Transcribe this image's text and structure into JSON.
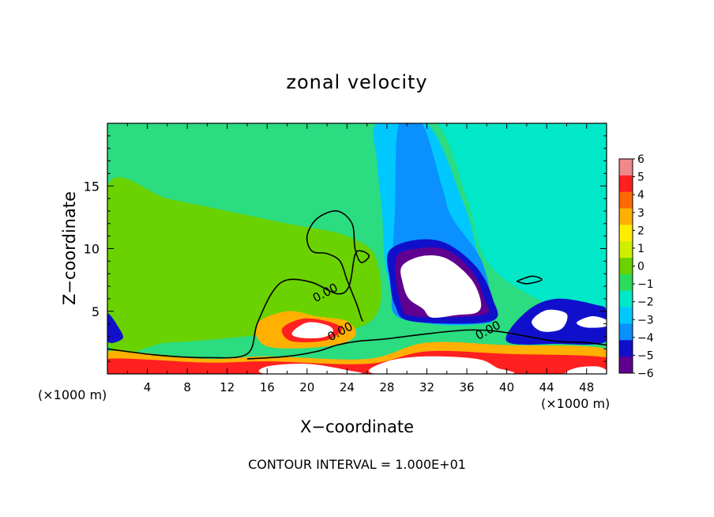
{
  "chart_data": {
    "type": "heatmap",
    "title": "zonal velocity",
    "xlabel": "X−coordinate",
    "ylabel": "Z−coordinate",
    "x_unit_left": "(×1000 m)",
    "x_unit_right": "(×1000 m)",
    "footer": "CONTOUR INTERVAL = 1.000E+01",
    "xlim": [
      0,
      50
    ],
    "ylim": [
      0,
      20
    ],
    "xticks": [
      4,
      8,
      12,
      16,
      20,
      24,
      28,
      32,
      36,
      40,
      44,
      48
    ],
    "xtick_labels": [
      "4",
      "8",
      "12",
      "16",
      "20",
      "24",
      "28",
      "32",
      "36",
      "40",
      "44",
      "48"
    ],
    "yticks": [
      5,
      10,
      15
    ],
    "ytick_labels": [
      "5",
      "10",
      "15"
    ],
    "contour_labels": [
      {
        "text": "0.00",
        "x": 22.0,
        "y": 6.2
      },
      {
        "text": "0.00",
        "x": 23.5,
        "y": 3.1
      },
      {
        "text": "0.00",
        "x": 38.3,
        "y": 3.2
      }
    ],
    "colorbar": {
      "values": [
        6,
        5,
        4,
        3,
        2,
        1,
        0,
        -1,
        -2,
        -3,
        -4,
        -5,
        -6
      ],
      "labels": [
        "6",
        "5",
        "4",
        "3",
        "2",
        "1",
        "0",
        "−1",
        "−2",
        "−3",
        "−4",
        "−5",
        "−6"
      ],
      "colors": [
        "#f08a8a",
        "#ff2020",
        "#ff6a00",
        "#ffb000",
        "#ffee00",
        "#cfee00",
        "#6ad200",
        "#2bdc5a",
        "#00e8c8",
        "#00c8ff",
        "#0a90ff",
        "#1010cc",
        "#600090"
      ]
    },
    "regions": [
      {
        "name": "background",
        "color": "#2bdc80",
        "polygon": [
          [
            0,
            20
          ],
          [
            50,
            20
          ],
          [
            50,
            0
          ],
          [
            0,
            0
          ]
        ]
      },
      {
        "name": "upper-right-teal",
        "color": "#00e8c8",
        "polygon": [
          [
            28,
            20
          ],
          [
            50,
            20
          ],
          [
            50,
            4
          ],
          [
            43,
            6
          ],
          [
            38,
            9
          ],
          [
            36,
            14
          ],
          [
            33,
            20
          ]
        ]
      },
      {
        "name": "upper-left-green",
        "color": "#6ad200",
        "polygon": [
          [
            0,
            15
          ],
          [
            6,
            14
          ],
          [
            12,
            13
          ],
          [
            18,
            12
          ],
          [
            24,
            11
          ],
          [
            27,
            9
          ],
          [
            26,
            4
          ],
          [
            14,
            3
          ],
          [
            6,
            2.5
          ],
          [
            0,
            2.5
          ]
        ]
      },
      {
        "name": "jet-light-blue",
        "color": "#00c8ff",
        "polygon": [
          [
            27,
            20
          ],
          [
            32,
            20
          ],
          [
            35.5,
            14
          ],
          [
            37,
            10
          ],
          [
            38,
            6
          ],
          [
            37,
            4
          ],
          [
            30,
            4.5
          ],
          [
            28,
            8
          ],
          [
            27.5,
            13
          ],
          [
            27,
            17
          ]
        ]
      },
      {
        "name": "jet-blue",
        "color": "#0a90ff",
        "polygon": [
          [
            29.2,
            20
          ],
          [
            31.5,
            20
          ],
          [
            33.5,
            15
          ],
          [
            34.5,
            12.5
          ],
          [
            37.5,
            9
          ],
          [
            38.5,
            5
          ],
          [
            37.5,
            4
          ],
          [
            29.5,
            4.4
          ],
          [
            28.5,
            7
          ],
          [
            28.8,
            13
          ]
        ]
      },
      {
        "name": "jet-core-ring",
        "color": "#1010cc",
        "polygon": [
          [
            28.2,
            9.8
          ],
          [
            31,
            10.7
          ],
          [
            34,
            10.4
          ],
          [
            37,
            8.5
          ],
          [
            38.6,
            6
          ],
          [
            38.4,
            4.2
          ],
          [
            30.5,
            4.2
          ],
          [
            28.8,
            5.5
          ],
          [
            28.3,
            7.5
          ]
        ]
      },
      {
        "name": "jet-core-inner",
        "color": "#600090",
        "polygon": [
          [
            28.9,
            9.2
          ],
          [
            31,
            10
          ],
          [
            34,
            9.9
          ],
          [
            36.5,
            8.2
          ],
          [
            37.8,
            5.9
          ],
          [
            37.6,
            4.7
          ],
          [
            30.8,
            4.6
          ],
          [
            29.4,
            5.6
          ]
        ]
      },
      {
        "name": "jet-core-saturated",
        "color": "#ffffff",
        "polygon": [
          [
            29.5,
            8.6
          ],
          [
            31.5,
            9.4
          ],
          [
            34,
            9.2
          ],
          [
            36.4,
            7.6
          ],
          [
            37.4,
            5.8
          ],
          [
            37,
            4.9
          ],
          [
            35,
            4.7
          ],
          [
            32.5,
            4.5
          ],
          [
            31.6,
            5.2
          ],
          [
            30.2,
            6
          ],
          [
            29.6,
            7.2
          ]
        ]
      },
      {
        "name": "right-low-blue",
        "color": "#1010cc",
        "polygon": [
          [
            40,
            2.6
          ],
          [
            42,
            5
          ],
          [
            45,
            6
          ],
          [
            49,
            5.5
          ],
          [
            50,
            5
          ],
          [
            50,
            2.6
          ],
          [
            45,
            2.4
          ]
        ]
      },
      {
        "name": "right-low-white",
        "color": "#ffffff",
        "polygon": [
          [
            42.5,
            4.2
          ],
          [
            44,
            5.1
          ],
          [
            46,
            4.8
          ],
          [
            45.5,
            3.6
          ],
          [
            43.5,
            3.4
          ]
        ]
      },
      {
        "name": "right-low-white-2",
        "color": "#ffffff",
        "polygon": [
          [
            47,
            4.1
          ],
          [
            48.5,
            4.6
          ],
          [
            50,
            4.3
          ],
          [
            50,
            3.8
          ],
          [
            48,
            3.7
          ]
        ]
      },
      {
        "name": "left-edge-blue",
        "color": "#1010cc",
        "polygon": [
          [
            0,
            4.8
          ],
          [
            1.2,
            3.6
          ],
          [
            1.5,
            2.8
          ],
          [
            0,
            2.6
          ]
        ]
      },
      {
        "name": "lower-shear-orange",
        "color": "#ffb000",
        "polygon": [
          [
            15,
            4
          ],
          [
            18,
            5
          ],
          [
            21,
            4.6
          ],
          [
            24,
            4.2
          ],
          [
            24.8,
            3
          ],
          [
            22,
            2.2
          ],
          [
            16,
            2.2
          ]
        ]
      },
      {
        "name": "lower-shear-red",
        "color": "#ff2020",
        "polygon": [
          [
            17.5,
            3.6
          ],
          [
            19.5,
            4.4
          ],
          [
            22,
            4.2
          ],
          [
            23.5,
            3.6
          ],
          [
            22,
            2.7
          ],
          [
            18.5,
            2.6
          ]
        ]
      },
      {
        "name": "lower-shear-white",
        "color": "#ffffff",
        "polygon": [
          [
            18.5,
            3.3
          ],
          [
            20,
            4.1
          ],
          [
            22,
            3.9
          ],
          [
            22.6,
            3.4
          ],
          [
            21.5,
            2.9
          ],
          [
            19.2,
            2.9
          ]
        ]
      },
      {
        "name": "ground-band-orange",
        "color": "#ffb000",
        "polygon": [
          [
            0,
            1.8
          ],
          [
            10,
            1.2
          ],
          [
            16,
            1.4
          ],
          [
            26,
            1.2
          ],
          [
            32,
            2.5
          ],
          [
            40,
            2.3
          ],
          [
            50,
            2
          ],
          [
            50,
            0
          ],
          [
            0,
            0
          ]
        ]
      },
      {
        "name": "ground-band-red",
        "color": "#ff2020",
        "polygon": [
          [
            0,
            1.2
          ],
          [
            10,
            0.9
          ],
          [
            16,
            1
          ],
          [
            26,
            0.8
          ],
          [
            32,
            1.8
          ],
          [
            40,
            1.6
          ],
          [
            50,
            1.3
          ],
          [
            50,
            0
          ],
          [
            0,
            0
          ]
        ]
      },
      {
        "name": "ground-band-white-left",
        "color": "#ffffff",
        "polygon": [
          [
            16,
            0
          ],
          [
            16,
            0.6
          ],
          [
            20,
            0.8
          ],
          [
            24,
            0.3
          ],
          [
            25,
            0
          ]
        ]
      },
      {
        "name": "ground-band-white-mid",
        "color": "#ffffff",
        "polygon": [
          [
            27,
            0
          ],
          [
            28,
            1.0
          ],
          [
            32,
            1.4
          ],
          [
            37,
            1.2
          ],
          [
            39,
            0.5
          ],
          [
            40,
            0
          ]
        ]
      },
      {
        "name": "ground-band-white-right",
        "color": "#ffffff",
        "polygon": [
          [
            46,
            0
          ],
          [
            47,
            0.5
          ],
          [
            49,
            0.6
          ],
          [
            50,
            0.3
          ],
          [
            50,
            0
          ]
        ]
      }
    ],
    "contours": [
      {
        "name": "contour-zero-upper",
        "points": [
          [
            0,
            2
          ],
          [
            5,
            1.5
          ],
          [
            10,
            1.3
          ],
          [
            14,
            1.6
          ],
          [
            15,
            4
          ],
          [
            16.5,
            6.5
          ],
          [
            18,
            7.5
          ],
          [
            20.5,
            7.3
          ],
          [
            23,
            6.4
          ],
          [
            24.2,
            7
          ],
          [
            24.8,
            9.5
          ],
          [
            25.5,
            9.8
          ],
          [
            26.2,
            9.4
          ],
          [
            25.4,
            8.9
          ],
          [
            24.8,
            10
          ],
          [
            24.5,
            12
          ],
          [
            23,
            13
          ],
          [
            21,
            12.4
          ],
          [
            20,
            11
          ],
          [
            20.5,
            9.8
          ],
          [
            22,
            9.6
          ],
          [
            23.3,
            9
          ],
          [
            24,
            7.5
          ],
          [
            25,
            5.5
          ],
          [
            25.4,
            4.5
          ],
          [
            25.6,
            4.2
          ]
        ]
      },
      {
        "name": "contour-zero-lower",
        "points": [
          [
            14,
            1.2
          ],
          [
            18,
            1.4
          ],
          [
            21,
            1.8
          ],
          [
            23,
            2.3
          ],
          [
            25,
            2.6
          ],
          [
            28,
            2.8
          ],
          [
            32,
            3.2
          ],
          [
            36,
            3.5
          ],
          [
            39,
            3.4
          ],
          [
            42,
            3.0
          ],
          [
            45,
            2.6
          ],
          [
            48,
            2.5
          ],
          [
            50,
            2.3
          ]
        ]
      },
      {
        "name": "contour-zero-small",
        "points": [
          [
            41,
            7.4
          ],
          [
            42.5,
            7.8
          ],
          [
            43.5,
            7.5
          ],
          [
            42,
            7.2
          ],
          [
            41,
            7.4
          ]
        ]
      }
    ]
  }
}
